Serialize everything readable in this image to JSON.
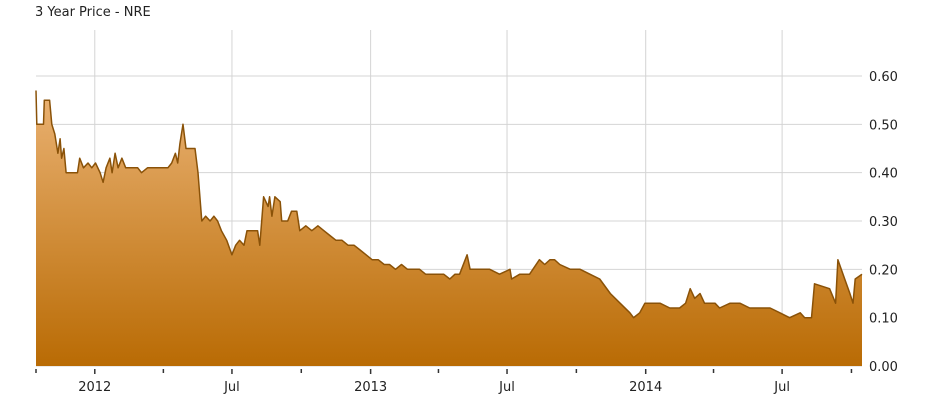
{
  "chart_data": {
    "type": "area",
    "title": "3 Year Price - NRE",
    "xlabel": "",
    "ylabel": "",
    "xlim": [
      "2011-10-15",
      "2014-10-15"
    ],
    "ylim": [
      0,
      0.6
    ],
    "grid": true,
    "y_axis_side": "right",
    "y_ticks": [
      "0.00",
      "0.10",
      "0.20",
      "0.30",
      "0.40",
      "0.50",
      "0.60"
    ],
    "x_ticks": [
      {
        "date": "2012-01-01",
        "label": "2012"
      },
      {
        "date": "2012-07-01",
        "label": "Jul"
      },
      {
        "date": "2013-01-01",
        "label": "2013"
      },
      {
        "date": "2013-07-01",
        "label": "Jul"
      },
      {
        "date": "2014-01-01",
        "label": "2014"
      },
      {
        "date": "2014-07-01",
        "label": "Jul"
      }
    ],
    "x_minor_ticks": [
      "2011-10-15",
      "2012-04-01",
      "2012-10-01",
      "2013-04-01",
      "2013-10-01",
      "2014-04-01",
      "2014-10-01"
    ],
    "colors": {
      "line": "#8a5208",
      "fill_top": "#eab273",
      "fill_bottom": "#b96b04",
      "grid": "#d4d4d4"
    },
    "series": [
      {
        "points": [
          [
            "2011-10-15",
            0.57
          ],
          [
            "2011-10-16",
            0.5
          ],
          [
            "2011-10-25",
            0.5
          ],
          [
            "2011-10-26",
            0.55
          ],
          [
            "2011-11-02",
            0.55
          ],
          [
            "2011-11-05",
            0.5
          ],
          [
            "2011-11-09",
            0.48
          ],
          [
            "2011-11-13",
            0.44
          ],
          [
            "2011-11-16",
            0.47
          ],
          [
            "2011-11-18",
            0.43
          ],
          [
            "2011-11-21",
            0.45
          ],
          [
            "2011-11-24",
            0.4
          ],
          [
            "2011-11-29",
            0.4
          ],
          [
            "2011-12-04",
            0.4
          ],
          [
            "2011-12-09",
            0.4
          ],
          [
            "2011-12-12",
            0.43
          ],
          [
            "2011-12-17",
            0.41
          ],
          [
            "2011-12-23",
            0.42
          ],
          [
            "2011-12-28",
            0.41
          ],
          [
            "2012-01-02",
            0.42
          ],
          [
            "2012-01-08",
            0.4
          ],
          [
            "2012-01-12",
            0.38
          ],
          [
            "2012-01-16",
            0.41
          ],
          [
            "2012-01-21",
            0.43
          ],
          [
            "2012-01-24",
            0.4
          ],
          [
            "2012-01-28",
            0.44
          ],
          [
            "2012-02-01",
            0.41
          ],
          [
            "2012-02-06",
            0.43
          ],
          [
            "2012-02-11",
            0.41
          ],
          [
            "2012-02-19",
            0.41
          ],
          [
            "2012-02-27",
            0.41
          ],
          [
            "2012-03-03",
            0.4
          ],
          [
            "2012-03-11",
            0.41
          ],
          [
            "2012-03-21",
            0.41
          ],
          [
            "2012-03-30",
            0.41
          ],
          [
            "2012-04-07",
            0.41
          ],
          [
            "2012-04-12",
            0.42
          ],
          [
            "2012-04-17",
            0.44
          ],
          [
            "2012-04-20",
            0.42
          ],
          [
            "2012-04-23",
            0.46
          ],
          [
            "2012-04-27",
            0.5
          ],
          [
            "2012-05-01",
            0.45
          ],
          [
            "2012-05-06",
            0.45
          ],
          [
            "2012-05-13",
            0.45
          ],
          [
            "2012-05-17",
            0.4
          ],
          [
            "2012-05-22",
            0.3
          ],
          [
            "2012-05-27",
            0.31
          ],
          [
            "2012-06-02",
            0.3
          ],
          [
            "2012-06-07",
            0.31
          ],
          [
            "2012-06-12",
            0.3
          ],
          [
            "2012-06-17",
            0.28
          ],
          [
            "2012-06-24",
            0.26
          ],
          [
            "2012-07-01",
            0.23
          ],
          [
            "2012-07-06",
            0.25
          ],
          [
            "2012-07-11",
            0.26
          ],
          [
            "2012-07-17",
            0.25
          ],
          [
            "2012-07-21",
            0.28
          ],
          [
            "2012-07-27",
            0.28
          ],
          [
            "2012-08-04",
            0.28
          ],
          [
            "2012-08-07",
            0.25
          ],
          [
            "2012-08-12",
            0.35
          ],
          [
            "2012-08-18",
            0.33
          ],
          [
            "2012-08-20",
            0.35
          ],
          [
            "2012-08-23",
            0.31
          ],
          [
            "2012-08-27",
            0.35
          ],
          [
            "2012-09-03",
            0.34
          ],
          [
            "2012-09-05",
            0.3
          ],
          [
            "2012-09-13",
            0.3
          ],
          [
            "2012-09-18",
            0.32
          ],
          [
            "2012-09-25",
            0.32
          ],
          [
            "2012-09-29",
            0.28
          ],
          [
            "2012-10-07",
            0.29
          ],
          [
            "2012-10-15",
            0.28
          ],
          [
            "2012-10-23",
            0.29
          ],
          [
            "2012-10-31",
            0.28
          ],
          [
            "2012-11-08",
            0.27
          ],
          [
            "2012-11-16",
            0.26
          ],
          [
            "2012-11-24",
            0.26
          ],
          [
            "2012-12-02",
            0.25
          ],
          [
            "2012-12-10",
            0.25
          ],
          [
            "2012-12-18",
            0.24
          ],
          [
            "2012-12-26",
            0.23
          ],
          [
            "2013-01-03",
            0.22
          ],
          [
            "2013-01-11",
            0.22
          ],
          [
            "2013-01-19",
            0.21
          ],
          [
            "2013-01-26",
            0.21
          ],
          [
            "2013-02-03",
            0.2
          ],
          [
            "2013-02-11",
            0.21
          ],
          [
            "2013-02-19",
            0.2
          ],
          [
            "2013-02-27",
            0.2
          ],
          [
            "2013-03-07",
            0.2
          ],
          [
            "2013-03-15",
            0.19
          ],
          [
            "2013-03-23",
            0.19
          ],
          [
            "2013-03-31",
            0.19
          ],
          [
            "2013-04-08",
            0.19
          ],
          [
            "2013-04-16",
            0.18
          ],
          [
            "2013-04-23",
            0.19
          ],
          [
            "2013-04-29",
            0.19
          ],
          [
            "2013-05-09",
            0.23
          ],
          [
            "2013-05-13",
            0.2
          ],
          [
            "2013-05-26",
            0.2
          ],
          [
            "2013-06-08",
            0.2
          ],
          [
            "2013-06-21",
            0.19
          ],
          [
            "2013-07-05",
            0.2
          ],
          [
            "2013-07-07",
            0.18
          ],
          [
            "2013-07-18",
            0.19
          ],
          [
            "2013-07-31",
            0.19
          ],
          [
            "2013-08-13",
            0.22
          ],
          [
            "2013-08-20",
            0.21
          ],
          [
            "2013-08-27",
            0.22
          ],
          [
            "2013-09-02",
            0.22
          ],
          [
            "2013-09-09",
            0.21
          ],
          [
            "2013-09-23",
            0.2
          ],
          [
            "2013-10-06",
            0.2
          ],
          [
            "2013-10-19",
            0.19
          ],
          [
            "2013-11-01",
            0.18
          ],
          [
            "2013-11-15",
            0.15
          ],
          [
            "2013-11-28",
            0.13
          ],
          [
            "2013-12-11",
            0.11
          ],
          [
            "2013-12-16",
            0.1
          ],
          [
            "2013-12-24",
            0.11
          ],
          [
            "2013-12-31",
            0.13
          ],
          [
            "2014-01-09",
            0.13
          ],
          [
            "2014-01-20",
            0.13
          ],
          [
            "2014-02-02",
            0.12
          ],
          [
            "2014-02-15",
            0.12
          ],
          [
            "2014-02-23",
            0.13
          ],
          [
            "2014-03-01",
            0.16
          ],
          [
            "2014-03-07",
            0.14
          ],
          [
            "2014-03-14",
            0.15
          ],
          [
            "2014-03-20",
            0.13
          ],
          [
            "2014-04-03",
            0.13
          ],
          [
            "2014-04-09",
            0.12
          ],
          [
            "2014-04-23",
            0.13
          ],
          [
            "2014-05-06",
            0.13
          ],
          [
            "2014-05-19",
            0.12
          ],
          [
            "2014-06-01",
            0.12
          ],
          [
            "2014-06-15",
            0.12
          ],
          [
            "2014-06-28",
            0.11
          ],
          [
            "2014-07-11",
            0.1
          ],
          [
            "2014-07-25",
            0.11
          ],
          [
            "2014-07-31",
            0.1
          ],
          [
            "2014-08-09",
            0.1
          ],
          [
            "2014-08-13",
            0.17
          ],
          [
            "2014-09-02",
            0.16
          ],
          [
            "2014-09-10",
            0.13
          ],
          [
            "2014-09-13",
            0.22
          ],
          [
            "2014-09-22",
            0.18
          ],
          [
            "2014-09-29",
            0.15
          ],
          [
            "2014-10-03",
            0.13
          ],
          [
            "2014-10-06",
            0.18
          ],
          [
            "2014-10-15",
            0.19
          ]
        ]
      }
    ]
  }
}
